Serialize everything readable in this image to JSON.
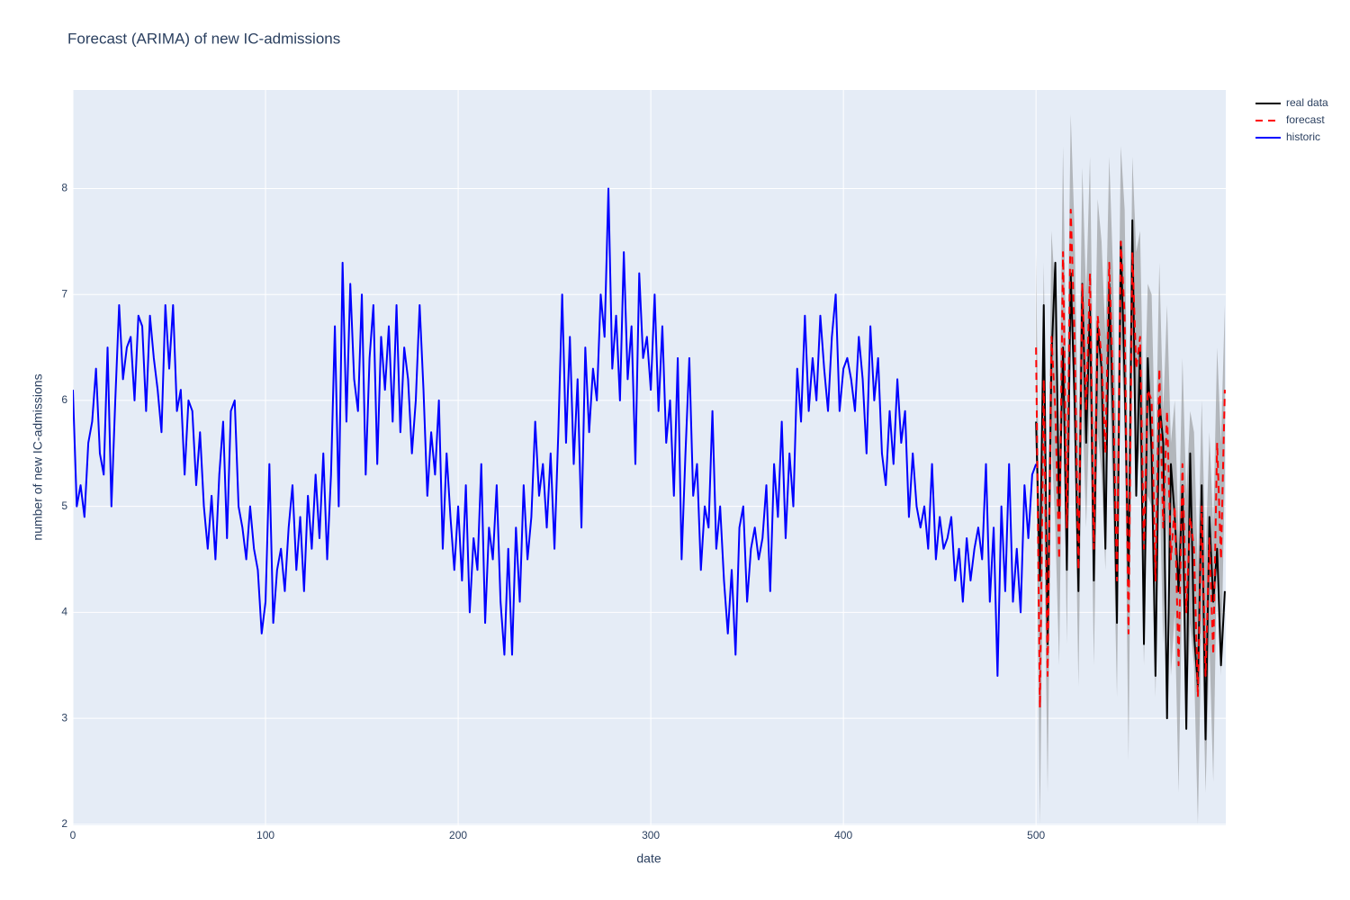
{
  "chart_data": {
    "type": "line",
    "title": "Forecast (ARIMA) of new IC-admissions",
    "x_label": "date",
    "y_label": "number of new IC-admissions",
    "xlim": [
      0,
      598.5
    ],
    "ylim": [
      1.99,
      8.93
    ],
    "xticks": [
      0,
      100,
      200,
      300,
      400,
      500
    ],
    "yticks": [
      2,
      3,
      4,
      5,
      6,
      7,
      8
    ],
    "grid": true,
    "legend_position": "outside-right",
    "plot_background": "#e5ecf6",
    "interval": {
      "color": "rgba(128,128,128,0.5)",
      "x": [
        500,
        502,
        504,
        506,
        508,
        510,
        512,
        514,
        516,
        518,
        520,
        522,
        524,
        526,
        528,
        530,
        532,
        534,
        536,
        538,
        540,
        542,
        544,
        546,
        548,
        550,
        552,
        554,
        556,
        558,
        560,
        562,
        564,
        566,
        568,
        570,
        572,
        574,
        576,
        578,
        580,
        582,
        584,
        586,
        588,
        590,
        592,
        594,
        596,
        598
      ],
      "upper": [
        7.4,
        4.2,
        7.3,
        4.5,
        7.6,
        7.0,
        5.5,
        8.4,
        5.9,
        8.7,
        7.6,
        5.5,
        8.2,
        7.0,
        8.3,
        5.7,
        7.9,
        7.5,
        6.6,
        8.3,
        7.2,
        5.4,
        8.4,
        7.8,
        5.0,
        8.3,
        7.4,
        7.6,
        5.7,
        7.1,
        7.0,
        5.4,
        7.3,
        5.9,
        6.9,
        5.6,
        6.0,
        4.7,
        6.4,
        5.1,
        5.9,
        5.7,
        4.4,
        6.0,
        4.5,
        5.7,
        4.8,
        6.5,
        5.6,
        6.9
      ],
      "lower": [
        5.6,
        2.0,
        5.1,
        2.3,
        5.6,
        4.8,
        3.5,
        6.4,
        3.7,
        6.9,
        5.6,
        3.3,
        6.0,
        4.8,
        6.1,
        3.5,
        5.7,
        5.3,
        4.4,
        6.3,
        5.0,
        3.2,
        6.6,
        5.8,
        2.6,
        6.5,
        5.2,
        5.6,
        3.5,
        5.1,
        5.0,
        3.2,
        5.3,
        3.7,
        4.9,
        3.4,
        4.0,
        2.3,
        4.4,
        2.9,
        3.9,
        3.5,
        2.0,
        4.0,
        2.3,
        3.7,
        2.4,
        4.6,
        3.4,
        5.3
      ]
    },
    "series": [
      {
        "name": "real data",
        "color": "#000000",
        "dash": "solid",
        "x": [
          500,
          502,
          504,
          506,
          508,
          510,
          512,
          514,
          516,
          518,
          520,
          522,
          524,
          526,
          528,
          530,
          532,
          534,
          536,
          538,
          540,
          542,
          544,
          546,
          548,
          550,
          552,
          554,
          556,
          558,
          560,
          562,
          564,
          566,
          568,
          570,
          572,
          574,
          576,
          578,
          580,
          582,
          584,
          586,
          588,
          590,
          592,
          594,
          596,
          598
        ],
        "values": [
          5.8,
          4.3,
          6.9,
          3.7,
          6.4,
          7.3,
          4.9,
          6.5,
          4.4,
          7.2,
          6.0,
          4.2,
          7.1,
          5.6,
          6.9,
          4.3,
          6.7,
          6.3,
          4.6,
          7.1,
          5.8,
          3.9,
          7.5,
          6.2,
          4.3,
          7.7,
          5.1,
          6.5,
          3.7,
          6.4,
          5.5,
          3.4,
          6.0,
          5.6,
          3.0,
          5.4,
          4.9,
          4.2,
          5.2,
          2.9,
          5.5,
          3.8,
          3.3,
          5.2,
          2.8,
          4.9,
          4.1,
          4.6,
          3.5,
          4.2
        ]
      },
      {
        "name": "forecast",
        "color": "#ff0000",
        "dash": "dash",
        "x": [
          500,
          502,
          504,
          506,
          508,
          510,
          512,
          514,
          516,
          518,
          520,
          522,
          524,
          526,
          528,
          530,
          532,
          534,
          536,
          538,
          540,
          542,
          544,
          546,
          548,
          550,
          552,
          554,
          556,
          558,
          560,
          562,
          564,
          566,
          568,
          570,
          572,
          574,
          576,
          578,
          580,
          582,
          584,
          586,
          588,
          590,
          592,
          594,
          596,
          598
        ],
        "values": [
          6.5,
          3.1,
          6.2,
          3.4,
          6.6,
          5.9,
          4.5,
          7.4,
          4.8,
          7.8,
          6.6,
          4.4,
          7.1,
          5.9,
          7.2,
          4.6,
          6.8,
          6.4,
          5.5,
          7.3,
          6.1,
          4.3,
          7.5,
          6.8,
          3.8,
          7.4,
          6.3,
          6.6,
          4.6,
          6.1,
          6.0,
          4.3,
          6.3,
          4.8,
          5.9,
          4.5,
          5.0,
          3.5,
          5.4,
          4.0,
          4.9,
          4.6,
          3.2,
          5.0,
          3.4,
          4.7,
          3.6,
          5.6,
          4.5,
          6.1
        ]
      },
      {
        "name": "historic",
        "color": "#0000ff",
        "dash": "solid",
        "x": [
          0,
          2,
          4,
          6,
          8,
          10,
          12,
          14,
          16,
          18,
          20,
          22,
          24,
          26,
          28,
          30,
          32,
          34,
          36,
          38,
          40,
          42,
          44,
          46,
          48,
          50,
          52,
          54,
          56,
          58,
          60,
          62,
          64,
          66,
          68,
          70,
          72,
          74,
          76,
          78,
          80,
          82,
          84,
          86,
          88,
          90,
          92,
          94,
          96,
          98,
          100,
          102,
          104,
          106,
          108,
          110,
          112,
          114,
          116,
          118,
          120,
          122,
          124,
          126,
          128,
          130,
          132,
          134,
          136,
          138,
          140,
          142,
          144,
          146,
          148,
          150,
          152,
          154,
          156,
          158,
          160,
          162,
          164,
          166,
          168,
          170,
          172,
          174,
          176,
          178,
          180,
          182,
          184,
          186,
          188,
          190,
          192,
          194,
          196,
          198,
          200,
          202,
          204,
          206,
          208,
          210,
          212,
          214,
          216,
          218,
          220,
          222,
          224,
          226,
          228,
          230,
          232,
          234,
          236,
          238,
          240,
          242,
          244,
          246,
          248,
          250,
          252,
          254,
          256,
          258,
          260,
          262,
          264,
          266,
          268,
          270,
          272,
          274,
          276,
          278,
          280,
          282,
          284,
          286,
          288,
          290,
          292,
          294,
          296,
          298,
          300,
          302,
          304,
          306,
          308,
          310,
          312,
          314,
          316,
          318,
          320,
          322,
          324,
          326,
          328,
          330,
          332,
          334,
          336,
          338,
          340,
          342,
          344,
          346,
          348,
          350,
          352,
          354,
          356,
          358,
          360,
          362,
          364,
          366,
          368,
          370,
          372,
          374,
          376,
          378,
          380,
          382,
          384,
          386,
          388,
          390,
          392,
          394,
          396,
          398,
          400,
          402,
          404,
          406,
          408,
          410,
          412,
          414,
          416,
          418,
          420,
          422,
          424,
          426,
          428,
          430,
          432,
          434,
          436,
          438,
          440,
          442,
          444,
          446,
          448,
          450,
          452,
          454,
          456,
          458,
          460,
          462,
          464,
          466,
          468,
          470,
          472,
          474,
          476,
          478,
          480,
          482,
          484,
          486,
          488,
          490,
          492,
          494,
          496,
          498,
          500
        ],
        "values": [
          6.1,
          5.0,
          5.2,
          4.9,
          5.6,
          5.8,
          6.3,
          5.5,
          5.3,
          6.5,
          5.0,
          6.0,
          6.9,
          6.2,
          6.5,
          6.6,
          6.0,
          6.8,
          6.7,
          5.9,
          6.8,
          6.4,
          6.1,
          5.7,
          6.9,
          6.3,
          6.9,
          5.9,
          6.1,
          5.3,
          6.0,
          5.9,
          5.2,
          5.7,
          5.0,
          4.6,
          5.1,
          4.5,
          5.3,
          5.8,
          4.7,
          5.9,
          6.0,
          5.0,
          4.8,
          4.5,
          5.0,
          4.6,
          4.4,
          3.8,
          4.1,
          5.4,
          3.9,
          4.4,
          4.6,
          4.2,
          4.8,
          5.2,
          4.4,
          4.9,
          4.2,
          5.1,
          4.6,
          5.3,
          4.7,
          5.5,
          4.5,
          5.3,
          6.7,
          5.0,
          7.3,
          5.8,
          7.1,
          6.2,
          5.9,
          7.0,
          5.3,
          6.4,
          6.9,
          5.4,
          6.6,
          6.1,
          6.7,
          5.8,
          6.9,
          5.7,
          6.5,
          6.2,
          5.5,
          6.0,
          6.9,
          6.1,
          5.1,
          5.7,
          5.3,
          6.0,
          4.6,
          5.5,
          4.9,
          4.4,
          5.0,
          4.3,
          5.2,
          4.0,
          4.7,
          4.4,
          5.4,
          3.9,
          4.8,
          4.5,
          5.2,
          4.1,
          3.6,
          4.6,
          3.6,
          4.8,
          4.1,
          5.2,
          4.5,
          4.9,
          5.8,
          5.1,
          5.4,
          4.8,
          5.5,
          4.6,
          5.7,
          7.0,
          5.6,
          6.6,
          5.4,
          6.2,
          4.8,
          6.5,
          5.7,
          6.3,
          6.0,
          7.0,
          6.6,
          8.0,
          6.3,
          6.8,
          6.0,
          7.4,
          6.2,
          6.7,
          5.4,
          7.2,
          6.4,
          6.6,
          6.1,
          7.0,
          5.9,
          6.7,
          5.6,
          6.0,
          5.1,
          6.4,
          4.5,
          5.5,
          6.4,
          5.1,
          5.4,
          4.4,
          5.0,
          4.8,
          5.9,
          4.6,
          5.0,
          4.3,
          3.8,
          4.4,
          3.6,
          4.8,
          5.0,
          4.1,
          4.6,
          4.8,
          4.5,
          4.7,
          5.2,
          4.2,
          5.4,
          4.9,
          5.8,
          4.7,
          5.5,
          5.0,
          6.3,
          5.8,
          6.8,
          5.9,
          6.4,
          6.0,
          6.8,
          6.3,
          5.9,
          6.6,
          7.0,
          5.9,
          6.3,
          6.4,
          6.2,
          5.9,
          6.6,
          6.2,
          5.5,
          6.7,
          6.0,
          6.4,
          5.5,
          5.2,
          5.9,
          5.4,
          6.2,
          5.6,
          5.9,
          4.9,
          5.5,
          5.0,
          4.8,
          5.0,
          4.6,
          5.4,
          4.5,
          4.9,
          4.6,
          4.7,
          4.9,
          4.3,
          4.6,
          4.1,
          4.7,
          4.3,
          4.6,
          4.8,
          4.5,
          5.4,
          4.1,
          4.8,
          3.4,
          5.0,
          4.2,
          5.4,
          4.1,
          4.6,
          4.0,
          5.2,
          4.7,
          5.3,
          5.4
        ]
      }
    ]
  }
}
